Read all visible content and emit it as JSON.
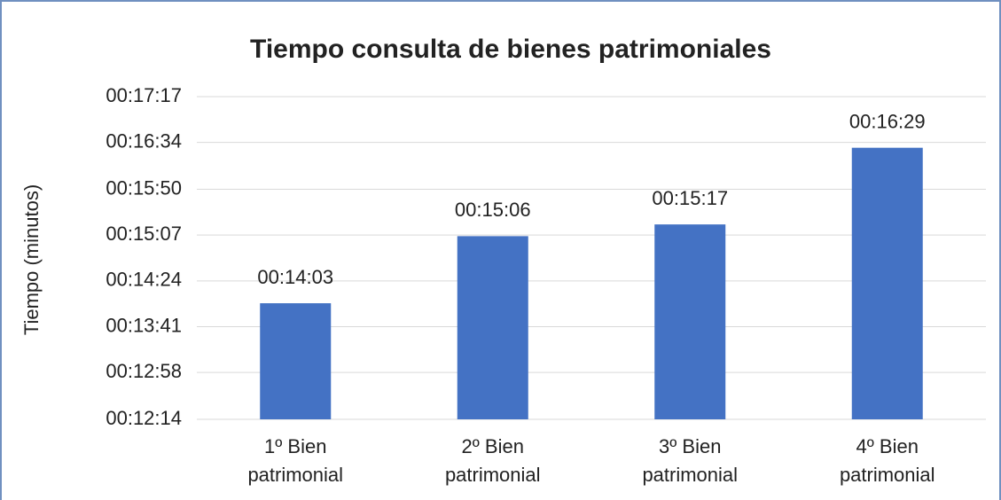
{
  "chart_data": {
    "type": "bar",
    "title": "Tiempo consulta de bienes patrimoniales",
    "y_label": "Tiempo (minutos)",
    "categories": [
      "1º Bien patrimonial",
      "2º Bien patrimonial",
      "3º Bien patrimonial",
      "4º Bien patrimonial"
    ],
    "values": [
      843,
      906,
      917,
      989
    ],
    "value_labels": [
      "00:14:03",
      "00:15:06",
      "00:15:17",
      "00:16:29"
    ],
    "color": "#4472c4",
    "ylim": [
      734,
      1037
    ],
    "yticks": [
      {
        "value": 734,
        "label": "00:12:14"
      },
      {
        "value": 778,
        "label": "00:12:58"
      },
      {
        "value": 821,
        "label": "00:13:41"
      },
      {
        "value": 864,
        "label": "00:14:24"
      },
      {
        "value": 907,
        "label": "00:15:07"
      },
      {
        "value": 950,
        "label": "00:15:50"
      },
      {
        "value": 994,
        "label": "00:16:34"
      },
      {
        "value": 1037,
        "label": "00:17:17"
      }
    ],
    "grid": true
  }
}
